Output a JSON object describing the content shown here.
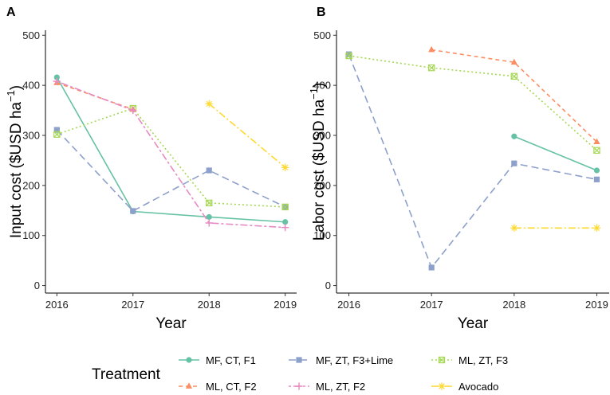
{
  "chart_data": [
    {
      "panel": "A",
      "type": "line",
      "xlabel": "Year",
      "ylabel_main": "Input cost ($USD  ha",
      "ylabel_sup": "−1",
      "ylabel_end": ")",
      "x": [
        2016,
        2017,
        2018,
        2019
      ],
      "x_tick_labels": [
        "2016",
        "2017",
        "2018",
        "2019"
      ],
      "ylim": [
        -15,
        510
      ],
      "y_ticks": [
        0,
        100,
        200,
        300,
        400,
        500
      ],
      "y_tick_labels": [
        "0",
        "100",
        "200",
        "300",
        "400",
        "500"
      ],
      "series": [
        {
          "name": "MF, CT, F1",
          "values": [
            416,
            148,
            137,
            127
          ]
        },
        {
          "name": "MF, ZT, F3+Lime",
          "values": [
            311,
            149,
            230,
            157
          ]
        },
        {
          "name": "ML, ZT, F3",
          "values": [
            302,
            354,
            165,
            157
          ]
        },
        {
          "name": "ML, CT, F2",
          "values": [
            405,
            352,
            null,
            null
          ]
        },
        {
          "name": "ML, ZT, F2",
          "values": [
            408,
            350,
            125,
            116
          ]
        },
        {
          "name": "Avocado",
          "values": [
            null,
            null,
            363,
            236
          ]
        }
      ]
    },
    {
      "panel": "B",
      "type": "line",
      "xlabel": "Year",
      "ylabel_main": "Labor cost ($USD  ha",
      "ylabel_sup": "−1",
      "ylabel_end": ")",
      "x": [
        2016,
        2017,
        2018,
        2019
      ],
      "x_tick_labels": [
        "2016",
        "2017",
        "2018",
        "2019"
      ],
      "ylim": [
        -15,
        510
      ],
      "y_ticks": [
        0,
        100,
        200,
        300,
        400,
        500
      ],
      "y_tick_labels": [
        "0",
        "100",
        "200",
        "300",
        "400",
        "500"
      ],
      "series": [
        {
          "name": "MF, CT, F1",
          "values": [
            null,
            null,
            298,
            230
          ]
        },
        {
          "name": "MF, ZT, F3+Lime",
          "values": [
            462,
            36,
            244,
            212
          ]
        },
        {
          "name": "ML, ZT, F3",
          "values": [
            459,
            435,
            418,
            270
          ]
        },
        {
          "name": "ML, CT, F2",
          "values": [
            null,
            471,
            446,
            287
          ]
        },
        {
          "name": "ML, ZT, F2",
          "values": [
            null,
            null,
            null,
            null
          ]
        },
        {
          "name": "Avocado",
          "values": [
            null,
            null,
            115,
            115
          ]
        }
      ]
    }
  ],
  "legend": {
    "title": "Treatment",
    "entries": [
      {
        "name": "MF, CT, F1",
        "color": "#66c2a5",
        "dash": "solid",
        "marker": "circle"
      },
      {
        "name": "MF, ZT, F3+Lime",
        "color": "#8da0cb",
        "dash": "longdash",
        "marker": "square"
      },
      {
        "name": "ML, ZT, F3",
        "color": "#a6d854",
        "dash": "dotted",
        "marker": "boxcross"
      },
      {
        "name": "ML, CT, F2",
        "color": "#fc8d62",
        "dash": "dashed",
        "marker": "triangle"
      },
      {
        "name": "ML, ZT, F2",
        "color": "#e78ac3",
        "dash": "twodash",
        "marker": "plus"
      },
      {
        "name": "Avocado",
        "color": "#ffd92f",
        "dash": "dotdash",
        "marker": "asterisk"
      }
    ]
  }
}
